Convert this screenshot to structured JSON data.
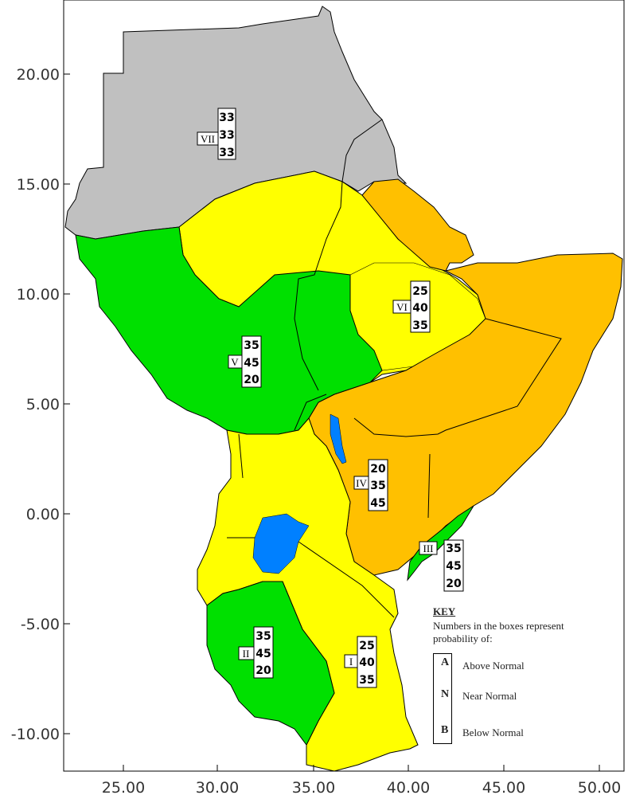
{
  "axes": {
    "x_ticks": [
      "25.00",
      "30.00",
      "35.00",
      "40.00",
      "45.00",
      "50.00"
    ],
    "y_ticks": [
      "20.00",
      "15.00",
      "10.00",
      "5.00",
      "0.00",
      "-5.00",
      "-10.00"
    ]
  },
  "colors": {
    "gray_zone": "#c0c0c0",
    "yellow_zone": "#ffff00",
    "orange_zone": "#ffc000",
    "green_zone": "#00e000",
    "lake": "#0080ff",
    "frame": "#000000"
  },
  "zones": [
    {
      "id": "I",
      "probs": [
        "25",
        "40",
        "35"
      ]
    },
    {
      "id": "II",
      "probs": [
        "35",
        "45",
        "20"
      ]
    },
    {
      "id": "III",
      "probs": [
        "35",
        "45",
        "20"
      ]
    },
    {
      "id": "IV",
      "probs": [
        "20",
        "35",
        "45"
      ]
    },
    {
      "id": "V",
      "probs": [
        "35",
        "45",
        "20"
      ]
    },
    {
      "id": "VI",
      "probs": [
        "25",
        "40",
        "35"
      ]
    },
    {
      "id": "VII",
      "probs": [
        "33",
        "33",
        "33"
      ]
    }
  ],
  "key": {
    "title": "KEY",
    "description_line1": "Numbers in the boxes represent",
    "description_line2": "probability of:",
    "entries": [
      {
        "letter": "A",
        "label": "Above Normal"
      },
      {
        "letter": "N",
        "label": "Near Normal"
      },
      {
        "letter": "B",
        "label": "Below Normal"
      }
    ]
  }
}
